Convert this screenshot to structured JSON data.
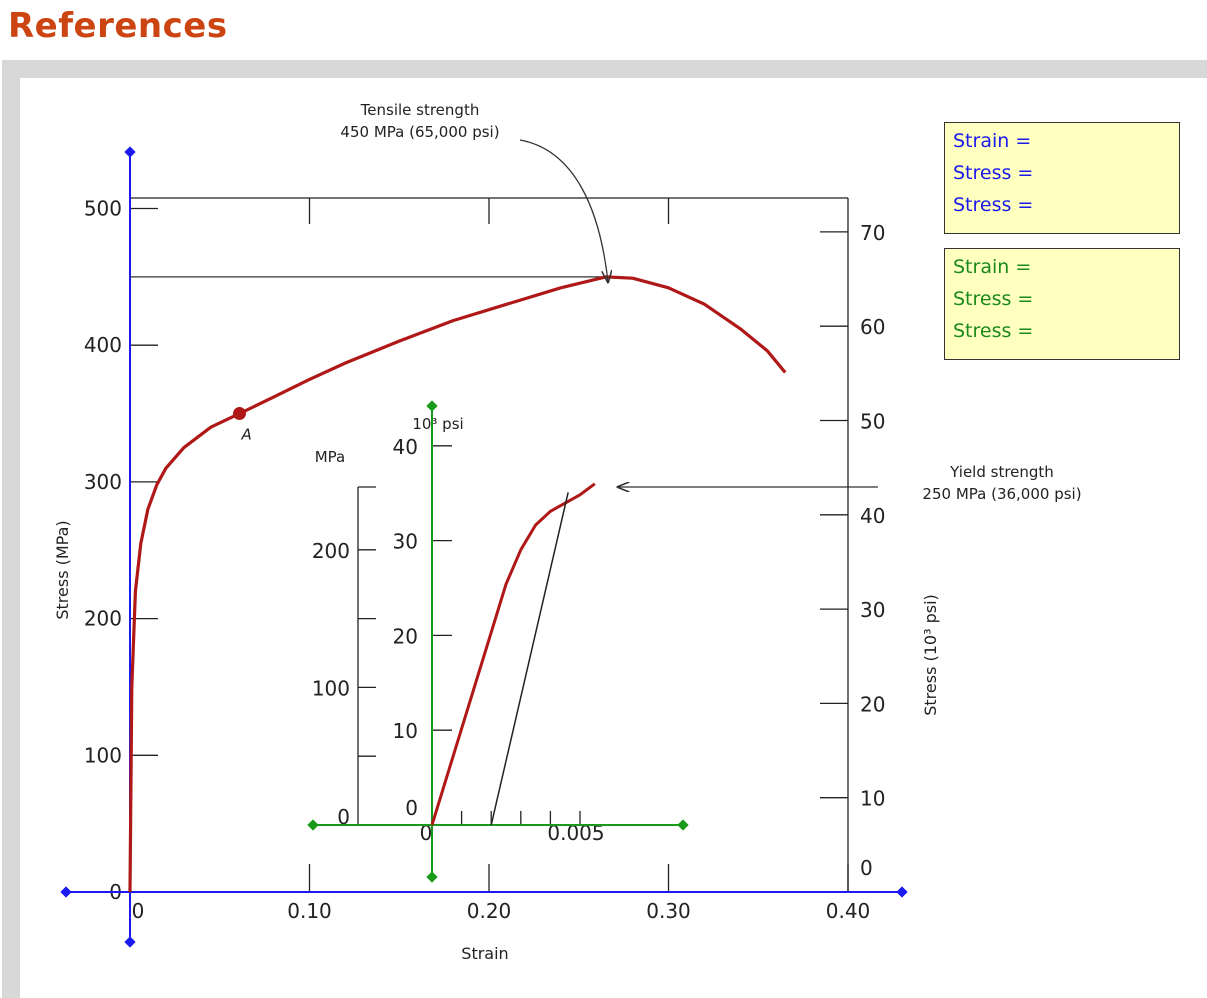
{
  "header": {
    "title": "References"
  },
  "readouts": {
    "blue": [
      "Strain =",
      "Stress =",
      "Stress ="
    ],
    "green": [
      "Strain =",
      "Stress =",
      "Stress ="
    ]
  },
  "colors": {
    "curve": "#b01818",
    "blue_axis": "#1a1aee",
    "green_axis": "#1a9a1a",
    "heading": "#cc4411"
  },
  "chart_data": [
    {
      "type": "line",
      "xlabel": "Strain",
      "ylabel": "Stress (MPa)",
      "ylabel_right": "Stress (10³ psi)",
      "xlim": [
        0,
        0.4
      ],
      "ylim": [
        0,
        520
      ],
      "ylim_right": [
        0,
        75.4
      ],
      "x_ticks": [
        "0",
        "0.10",
        "0.20",
        "0.30",
        "0.40"
      ],
      "y_ticks": [
        "0",
        "100",
        "200",
        "300",
        "400",
        "500"
      ],
      "y_ticks_right": [
        "0",
        "10",
        "20",
        "30",
        "40",
        "50",
        "60",
        "70"
      ],
      "series": [
        {
          "x": [
            0,
            0.001,
            0.003,
            0.006,
            0.01,
            0.015,
            0.02,
            0.03,
            0.045,
            0.061,
            0.08,
            0.1,
            0.12,
            0.15,
            0.18,
            0.21,
            0.24,
            0.265,
            0.28,
            0.3,
            0.32,
            0.34,
            0.355,
            0.365
          ],
          "y": [
            0,
            150,
            220,
            255,
            280,
            298,
            310,
            325,
            340,
            350,
            362,
            375,
            387,
            403,
            418,
            430,
            442,
            450,
            449,
            442,
            430,
            412,
            396,
            380
          ]
        }
      ],
      "point": {
        "label": "A",
        "x": 0.061,
        "y": 350
      },
      "annotations": [
        {
          "text": "Tensile strength",
          "text2": "450 MPa (65,000 psi)"
        },
        {
          "text": "Yield strength",
          "text2": "250 MPa (36,000 psi)"
        }
      ]
    },
    {
      "type": "line",
      "xlabel": "",
      "ylabel": "MPa",
      "ylabel_right": "10³ psi",
      "xlim": [
        0,
        0.0075
      ],
      "ylim": [
        0,
        250
      ],
      "x_ticks": [
        "0",
        "0.005"
      ],
      "y_ticks": [
        "0",
        "100",
        "200"
      ],
      "y_ticks_psi": [
        "0",
        "10",
        "20",
        "30",
        "40"
      ],
      "series": [
        {
          "x": [
            0,
            0.0005,
            0.001,
            0.0015,
            0.002,
            0.0025,
            0.003,
            0.0035,
            0.004,
            0.005,
            0.0055
          ],
          "y": [
            0,
            35,
            70,
            105,
            140,
            175,
            200,
            218,
            228,
            240,
            248
          ]
        }
      ]
    }
  ]
}
